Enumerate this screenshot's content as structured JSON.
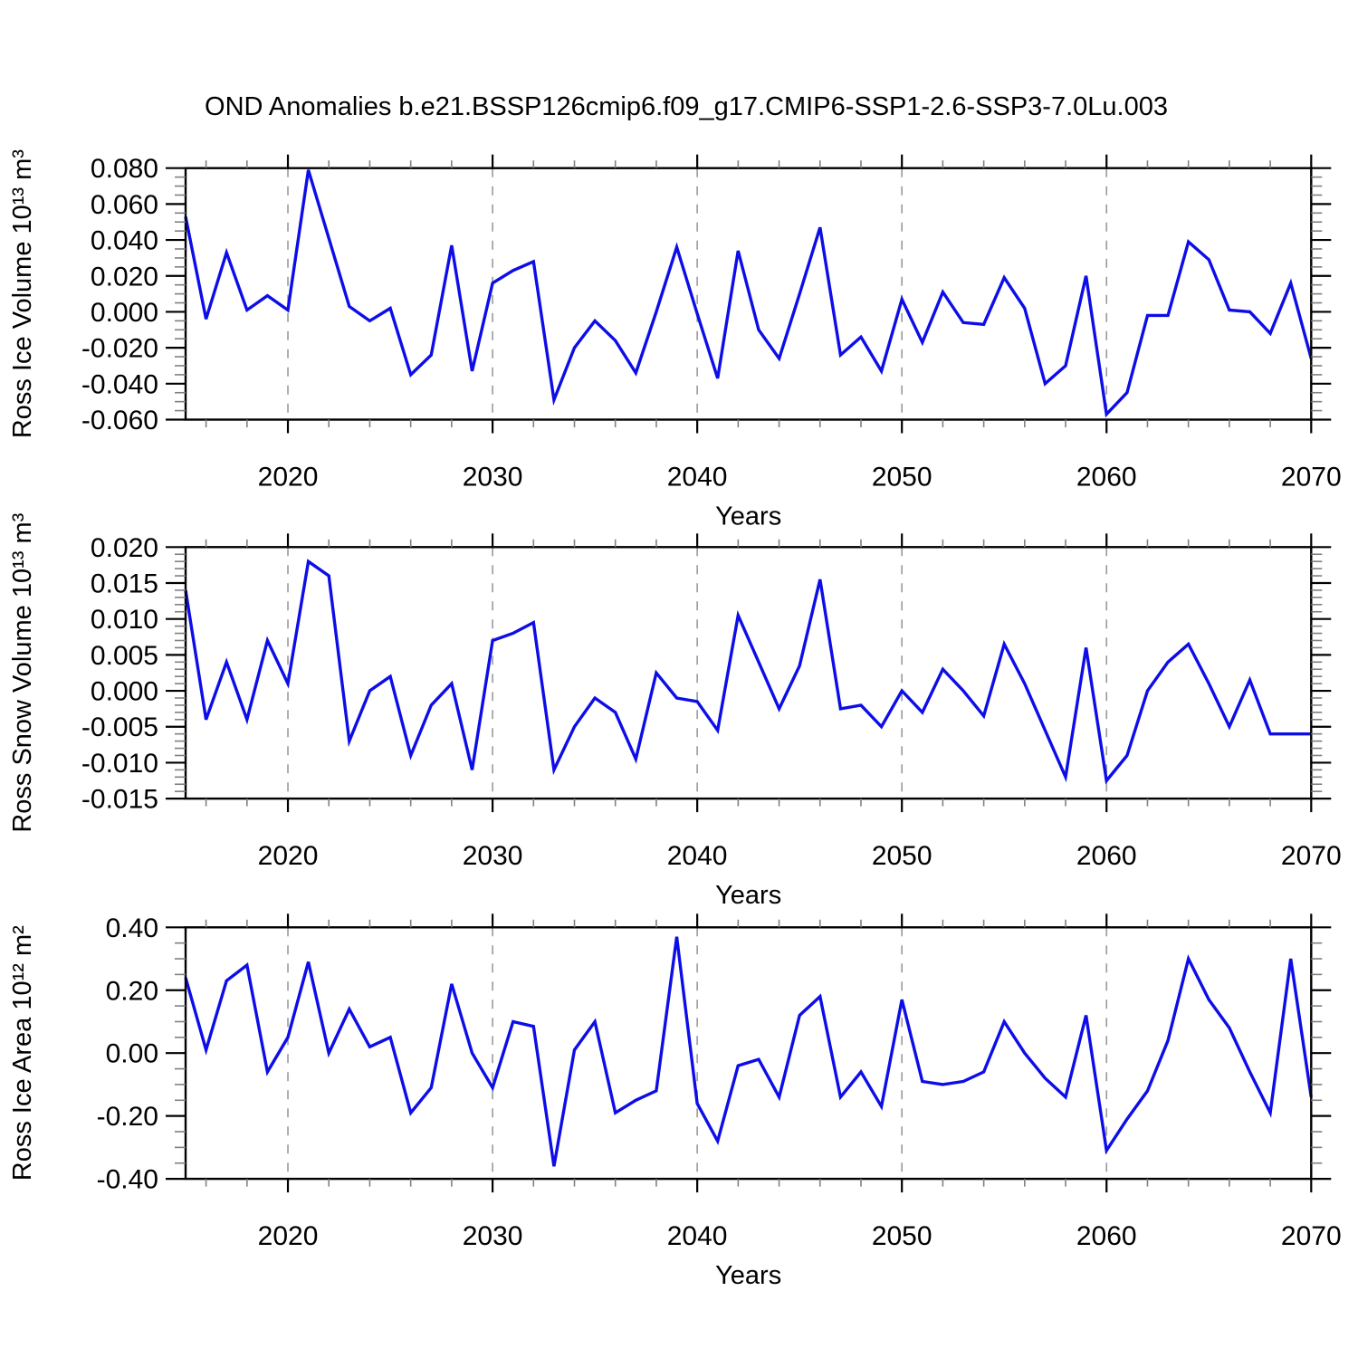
{
  "title": "OND Anomalies b.e21.BSSP126cmip6.f09_g17.CMIP6-SSP1-2.6-SSP3-7.0Lu.003",
  "colors": {
    "line": "#0d0de8",
    "axis": "#000000",
    "major_tick": "#000000",
    "minor_tick": "#808080",
    "gridline": "#9a9a9a",
    "background": "#ffffff"
  },
  "axis": {
    "x_min": 2015,
    "x_max": 2070,
    "x_major_ticks": [
      2020,
      2030,
      2040,
      2050,
      2060,
      2070
    ],
    "x_tick_labels": [
      "2020",
      "2030",
      "2040",
      "2050",
      "2060",
      "2070"
    ],
    "x_minor_step": 2,
    "x_gridlines": [
      2020,
      2030,
      2040,
      2050,
      2060
    ],
    "grid_style": "dashed"
  },
  "years": [
    2015,
    2016,
    2017,
    2018,
    2019,
    2020,
    2021,
    2022,
    2023,
    2024,
    2025,
    2026,
    2027,
    2028,
    2029,
    2030,
    2031,
    2032,
    2033,
    2034,
    2035,
    2036,
    2037,
    2038,
    2039,
    2040,
    2041,
    2042,
    2043,
    2044,
    2045,
    2046,
    2047,
    2048,
    2049,
    2050,
    2051,
    2052,
    2053,
    2054,
    2055,
    2056,
    2057,
    2058,
    2059,
    2060,
    2061,
    2062,
    2063,
    2064,
    2065,
    2066,
    2067,
    2068,
    2069,
    2070
  ],
  "chart_data": [
    {
      "type": "line",
      "ylabel": "Ross Ice Volume 10¹³ m³",
      "xlabel": "Years",
      "ylim": [
        -0.06,
        0.08
      ],
      "y_major_step": 0.02,
      "y_minor_step": 0.005,
      "y_tick_labels": [
        "0.080",
        "0.060",
        "0.040",
        "0.020",
        "0.000",
        "-0.020",
        "-0.040",
        "-0.060"
      ],
      "values": [
        0.053,
        -0.004,
        0.033,
        0.001,
        0.009,
        0.001,
        0.079,
        0.041,
        0.003,
        -0.005,
        0.002,
        -0.035,
        -0.024,
        0.037,
        -0.033,
        0.016,
        0.023,
        0.028,
        -0.049,
        -0.02,
        -0.005,
        -0.016,
        -0.034,
        0.0,
        0.036,
        -0.001,
        -0.037,
        0.034,
        -0.01,
        -0.026,
        0.01,
        0.047,
        -0.024,
        -0.014,
        -0.033,
        0.007,
        -0.017,
        0.011,
        -0.006,
        -0.007,
        0.019,
        0.002,
        -0.04,
        -0.03,
        0.02,
        -0.057,
        -0.045,
        -0.002,
        -0.002,
        0.039,
        0.029,
        0.001,
        0.0,
        -0.012,
        0.016,
        -0.026
      ]
    },
    {
      "type": "line",
      "ylabel": "Ross Snow Volume 10¹³ m³",
      "xlabel": "Years",
      "ylim": [
        -0.015,
        0.02
      ],
      "y_major_step": 0.005,
      "y_minor_step": 0.001,
      "y_tick_labels": [
        "0.020",
        "0.015",
        "0.010",
        "0.005",
        "0.000",
        "-0.005",
        "-0.010",
        "-0.015"
      ],
      "values": [
        0.014,
        -0.004,
        0.004,
        -0.004,
        0.007,
        0.001,
        0.018,
        0.016,
        -0.007,
        0.0,
        0.002,
        -0.009,
        -0.002,
        0.001,
        -0.011,
        0.007,
        0.008,
        0.0095,
        -0.011,
        -0.005,
        -0.001,
        -0.003,
        -0.0095,
        0.0025,
        -0.001,
        -0.0015,
        -0.0055,
        0.0105,
        0.004,
        -0.0025,
        0.0035,
        0.0155,
        -0.0025,
        -0.002,
        -0.005,
        0.0,
        -0.003,
        0.003,
        0.0,
        -0.0035,
        0.0065,
        0.001,
        -0.0055,
        -0.012,
        0.006,
        -0.0125,
        -0.009,
        0.0,
        0.004,
        0.0065,
        0.001,
        -0.005,
        0.0015,
        -0.006,
        -0.006,
        -0.006
      ]
    },
    {
      "type": "line",
      "ylabel": "Ross Ice Area 10¹² m²",
      "xlabel": "Years",
      "ylim": [
        -0.4,
        0.4
      ],
      "y_major_step": 0.2,
      "y_minor_step": 0.05,
      "y_tick_labels": [
        "0.40",
        "0.20",
        "0.00",
        "-0.20",
        "-0.40"
      ],
      "values": [
        0.24,
        0.01,
        0.23,
        0.28,
        -0.06,
        0.05,
        0.29,
        0.0,
        0.14,
        0.02,
        0.05,
        -0.19,
        -0.11,
        0.22,
        0.0,
        -0.11,
        0.1,
        0.085,
        -0.36,
        0.01,
        0.1,
        -0.19,
        -0.15,
        -0.12,
        0.37,
        -0.16,
        -0.28,
        -0.04,
        -0.02,
        -0.14,
        0.12,
        0.18,
        -0.14,
        -0.06,
        -0.17,
        0.17,
        -0.09,
        -0.1,
        -0.09,
        -0.06,
        0.1,
        0.0,
        -0.08,
        -0.14,
        0.12,
        -0.31,
        -0.21,
        -0.12,
        0.04,
        0.3,
        0.17,
        0.08,
        -0.06,
        -0.19,
        0.3,
        -0.14
      ]
    }
  ]
}
